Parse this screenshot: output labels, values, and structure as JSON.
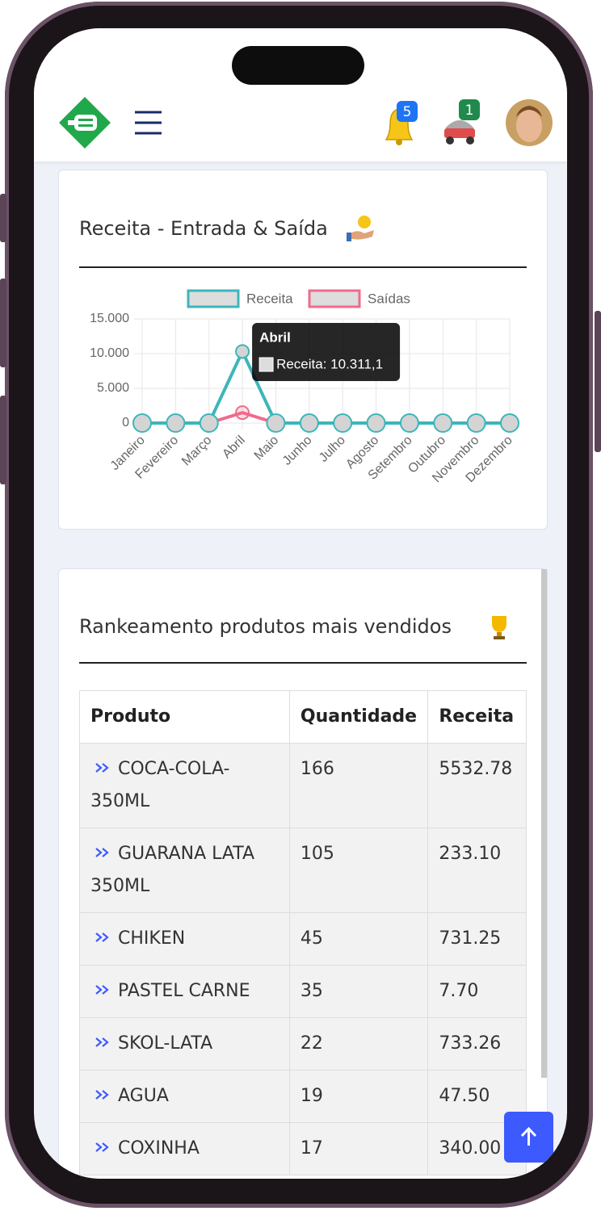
{
  "header": {
    "notifications": "5",
    "cart": "1"
  },
  "chart_data": {
    "type": "line",
    "title": "Receita - Entrada & Saída",
    "categories": [
      "Janeiro",
      "Fevereiro",
      "Março",
      "Abril",
      "Maio",
      "Junho",
      "Julho",
      "Agosto",
      "Setembro",
      "Outubro",
      "Novembro",
      "Dezembro"
    ],
    "series": [
      {
        "name": "Receita",
        "color": "#3cb6b9",
        "values": [
          0,
          0,
          0,
          10311.1,
          0,
          0,
          0,
          0,
          0,
          0,
          0,
          0
        ]
      },
      {
        "name": "Saídas",
        "color": "#f06b8b",
        "values": [
          0,
          0,
          0,
          1500,
          0,
          0,
          0,
          0,
          0,
          0,
          0,
          0
        ]
      }
    ],
    "ylim": [
      0,
      15000
    ],
    "yticks": [
      0,
      {
        "value": 5000,
        "label": "5.000"
      },
      {
        "value": 10000,
        "label": "10.000"
      },
      {
        "value": 15000,
        "label": "15.000"
      }
    ],
    "grid": true,
    "legend": "top",
    "tooltip": {
      "title": "Abril",
      "text": "Receita: 10.311,1"
    }
  },
  "table": {
    "title": "Rankeamento produtos mais vendidos",
    "columns": [
      "Produto",
      "Quantidade",
      "Receita"
    ],
    "rows": [
      [
        "COCA-COLA-350ML",
        "166",
        "5532.78"
      ],
      [
        "GUARANA LATA 350ML",
        "105",
        "233.10"
      ],
      [
        "CHIKEN",
        "45",
        "731.25"
      ],
      [
        "PASTEL CARNE",
        "35",
        "7.70"
      ],
      [
        "SKOL-LATA",
        "22",
        "733.26"
      ],
      [
        "AGUA",
        "19",
        "47.50"
      ],
      [
        "COXINHA",
        "17",
        "340.00"
      ]
    ]
  }
}
